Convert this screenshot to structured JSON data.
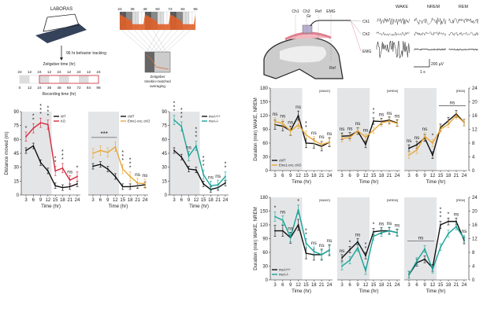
{
  "schematic": {
    "laboras": "LABORAS",
    "tracking": "96 hr behavior tracking",
    "zeitgeber_title": "Zeitgeber time (hr)",
    "zeitgeber_ticks": [
      "24",
      "12",
      "24",
      "12",
      "24",
      "12",
      "24",
      "12",
      "24"
    ],
    "recording_ticks": [
      "0",
      "12",
      "24",
      "36",
      "48",
      "60",
      "72",
      "84",
      "96"
    ],
    "recording_title": "Recording time (hr)",
    "heatmap_ticks": [
      "24",
      "36",
      "48",
      "60",
      "72",
      "84",
      "96"
    ],
    "averaging": [
      "Zeitgeber",
      "timebin-matched",
      "averaging"
    ],
    "electrodes": [
      "Ch1",
      "Ch2",
      "Ref",
      "EMG"
    ],
    "gr": "Gr",
    "ref_m": "Ref",
    "states": [
      "WAKE",
      "NREM",
      "REM"
    ],
    "channels": [
      "Ch1",
      "Ch2",
      "EMG"
    ],
    "scale_v": "200 µV",
    "scale_t": "1 s"
  },
  "colors": {
    "red": "#d42a3c",
    "yellow": "#e8a83a",
    "teal": "#17a398",
    "black": "#111111",
    "shade": "#e4e5e7"
  },
  "chart_data": [
    {
      "type": "line",
      "ylabel": "Distance moved (m)",
      "xlabel": "Time (hr)",
      "x": [
        3,
        6,
        9,
        12,
        15,
        18,
        21,
        24
      ],
      "ylim": [
        0,
        90
      ],
      "yticks": [
        0,
        15,
        30,
        45,
        60,
        75,
        90
      ],
      "series": [
        {
          "name": "WT",
          "color": "black",
          "values": [
            48,
            53,
            35,
            26,
            10,
            8,
            9,
            12
          ],
          "sem": 3
        },
        {
          "name": "KO",
          "color": "red",
          "values": [
            63,
            72,
            78,
            76,
            26,
            29,
            16,
            20
          ],
          "sem": 5
        }
      ],
      "sig": [
        "*",
        "**",
        "***",
        "***",
        "**",
        "***",
        "ns",
        "*"
      ]
    },
    {
      "type": "line",
      "xlabel": "Time (hr)",
      "x": [
        3,
        6,
        9,
        12,
        15,
        18,
        21,
        24
      ],
      "ylim": [
        0,
        90
      ],
      "series": [
        {
          "name": "cWT",
          "color": "black",
          "values": [
            31,
            33,
            28,
            20,
            9,
            9,
            10,
            11
          ],
          "sem": 3
        },
        {
          "name": "Emx1-cre; cKO",
          "color": "yellow",
          "values": [
            45,
            48,
            46,
            52,
            28,
            20,
            13,
            12
          ],
          "sem": 5
        }
      ],
      "sig": [
        "",
        "",
        "",
        "",
        "***",
        "***",
        "ns",
        "ns"
      ],
      "bracket": {
        "label": "***",
        "from": 3,
        "to": 12
      }
    },
    {
      "type": "line",
      "xlabel": "Time (hr)",
      "x": [
        3,
        6,
        9,
        12,
        15,
        18,
        21,
        24
      ],
      "ylim": [
        0,
        90
      ],
      "yticks": [
        0,
        15,
        30,
        45,
        60,
        75,
        90
      ],
      "series": [
        {
          "name": "meA+/+",
          "color": "black",
          "values": [
            48,
            41,
            28,
            27,
            12,
            6,
            8,
            13
          ],
          "sem": 3
        },
        {
          "name": "meA-/-",
          "color": "teal",
          "values": [
            81,
            74,
            42,
            53,
            22,
            10,
            11,
            20
          ],
          "sem": 5
        }
      ],
      "sig": [
        "***",
        "***",
        "ns",
        "***",
        "***",
        "ns",
        "ns",
        "**"
      ]
    },
    {
      "type": "line",
      "state": "[WAKE]",
      "ylabel": "Duration (min) WAKE, NREM",
      "xlabel": "Time (hr)",
      "x": [
        3,
        6,
        9,
        12,
        15,
        18,
        21,
        24
      ],
      "ylim": [
        0,
        180
      ],
      "yticks": [
        0,
        30,
        60,
        90,
        120,
        150,
        180
      ],
      "series": [
        {
          "name": "cWT",
          "color": "black",
          "values": [
            100,
            97,
            87,
            120,
            60,
            59,
            53,
            62
          ],
          "sem": 10
        },
        {
          "name": "Emx1-cre; cKO",
          "color": "yellow",
          "values": [
            107,
            103,
            86,
            100,
            78,
            66,
            57,
            62
          ],
          "sem": 8
        }
      ],
      "sig": [
        "ns",
        "ns",
        "ns",
        "ns",
        "**",
        "ns",
        "ns",
        "ns"
      ]
    },
    {
      "type": "line",
      "state": "[NREM]",
      "xlabel": "Time (hr)",
      "x": [
        3,
        6,
        9,
        12,
        15,
        18,
        21,
        24
      ],
      "ylim": [
        0,
        180
      ],
      "series": [
        {
          "name": "cWT",
          "color": "black",
          "values": [
            75,
            76,
            86,
            57,
            108,
            107,
            110,
            104
          ],
          "sem": 7
        },
        {
          "name": "Emx1-cre; cKO",
          "color": "yellow",
          "values": [
            70,
            72,
            87,
            73,
            88,
            104,
            108,
            103
          ],
          "sem": 7
        }
      ],
      "sig": [
        "ns",
        "ns",
        "ns",
        "ns",
        "**",
        "ns",
        "ns",
        "ns"
      ]
    },
    {
      "type": "line",
      "state": "[REM]",
      "ylabel_right": "Duration (min) REM",
      "xlabel": "Time (hr)",
      "x": [
        3,
        6,
        9,
        12,
        15,
        18,
        21,
        24
      ],
      "ylim": [
        0,
        24
      ],
      "yticks_right": [
        0,
        4,
        8,
        12,
        16,
        20,
        24
      ],
      "series": [
        {
          "name": "cWT",
          "color": "black",
          "values": [
            6.5,
            7.5,
            9.5,
            4.5,
            12.5,
            14.5,
            16.5,
            14
          ],
          "sem": 1
        },
        {
          "name": "Emx1-cre; cKO",
          "color": "yellow",
          "values": [
            4.5,
            6,
            10,
            8,
            12,
            13.5,
            16,
            14
          ],
          "sem": 1
        }
      ],
      "sig": [
        "ns",
        "ns",
        "ns",
        "*",
        "",
        "",
        "",
        ""
      ],
      "bracket": {
        "label": "ns",
        "from": 15,
        "to": 24
      }
    },
    {
      "type": "line",
      "state": "[WAKE]",
      "ylabel": "Duration (min) WAKE, NREM",
      "xlabel": "Time (hr)",
      "x": [
        3,
        6,
        9,
        12,
        15,
        18,
        21,
        24
      ],
      "ylim": [
        0,
        180
      ],
      "yticks": [
        0,
        30,
        60,
        90,
        120,
        150,
        180
      ],
      "series": [
        {
          "name": "meA+/+",
          "color": "black",
          "values": [
            107,
            107,
            92,
            120,
            58,
            55,
            55,
            65
          ],
          "sem": 12
        },
        {
          "name": "meA-/-",
          "color": "teal",
          "values": [
            138,
            130,
            93,
            153,
            80,
            62,
            55,
            65
          ],
          "sem": 10
        }
      ],
      "sig": [
        "*",
        "ns",
        "ns",
        "*",
        "**",
        "ns",
        "ns",
        "ns"
      ]
    },
    {
      "type": "line",
      "state": "[NREM]",
      "xlabel": "Time (hr)",
      "x": [
        3,
        6,
        9,
        12,
        15,
        18,
        21,
        24
      ],
      "ylim": [
        0,
        180
      ],
      "series": [
        {
          "name": "meA+/+",
          "color": "black",
          "values": [
            48,
            66,
            83,
            53,
            105,
            107,
            107,
            103
          ],
          "sem": 7
        },
        {
          "name": "meA-/-",
          "color": "teal",
          "values": [
            30,
            43,
            70,
            20,
            95,
            103,
            107,
            103
          ],
          "sem": 8
        }
      ],
      "sig": [
        "ns",
        "*",
        "ns",
        "**",
        "*",
        "ns",
        "ns",
        "ns"
      ]
    },
    {
      "type": "line",
      "state": "[REM]",
      "ylabel_right": "Duration (min) REM",
      "xlabel": "Time (hr)",
      "x": [
        3,
        6,
        9,
        12,
        15,
        18,
        21,
        24
      ],
      "ylim": [
        0,
        24
      ],
      "yticks_right": [
        0,
        4,
        8,
        12,
        16,
        20,
        24
      ],
      "series": [
        {
          "name": "meA+/+",
          "color": "black",
          "values": [
            1.5,
            5,
            6,
            3.5,
            16,
            17,
            17,
            11.5
          ],
          "sem": 1
        },
        {
          "name": "meA-/-",
          "color": "teal",
          "values": [
            1.5,
            5.5,
            9,
            3,
            9.5,
            13.5,
            15.5,
            12
          ],
          "sem": 1
        }
      ],
      "sig": [
        "",
        "",
        "",
        "",
        "***",
        "*",
        "ns",
        "ns"
      ],
      "bracket": {
        "label": "ns",
        "from": 3,
        "to": 12
      }
    }
  ]
}
